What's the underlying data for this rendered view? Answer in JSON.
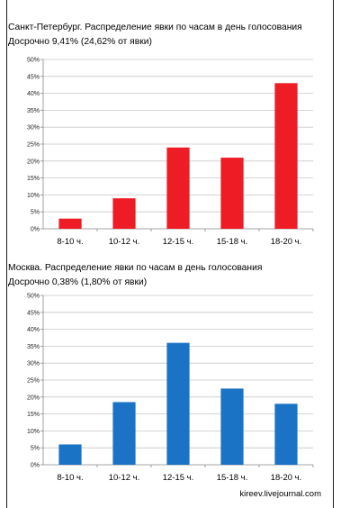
{
  "credit": "kireev.livejournal.com",
  "chart_data": [
    {
      "type": "bar",
      "title": "Санкт-Петербург. Распределение явки по часам в день голосования",
      "subtitle": "Досрочно 9,41% (24,62% от явки)",
      "categories": [
        "8-10 ч.",
        "10-12 ч.",
        "12-15 ч.",
        "15-18 ч.",
        "18-20 ч."
      ],
      "values": [
        3,
        9,
        24,
        21,
        43
      ],
      "ylim": [
        0,
        50
      ],
      "yticks": [
        "0%",
        "5%",
        "10%",
        "15%",
        "20%",
        "25%",
        "30%",
        "35%",
        "40%",
        "45%",
        "50%"
      ],
      "color": "#ee1c25",
      "grid": true
    },
    {
      "type": "bar",
      "title": "Москва. Распределение явки по часам в день голосования",
      "subtitle": "Досрочно 0,38% (1,80% от явки)",
      "categories": [
        "8-10 ч.",
        "10-12 ч.",
        "12-15 ч.",
        "15-18 ч.",
        "18-20 ч."
      ],
      "values": [
        6,
        18.5,
        36,
        22.5,
        18
      ],
      "ylim": [
        0,
        50
      ],
      "yticks": [
        "0%",
        "5%",
        "10%",
        "15%",
        "20%",
        "25%",
        "30%",
        "35%",
        "40%",
        "45%",
        "50%"
      ],
      "color": "#1a73c4",
      "grid": true
    }
  ]
}
